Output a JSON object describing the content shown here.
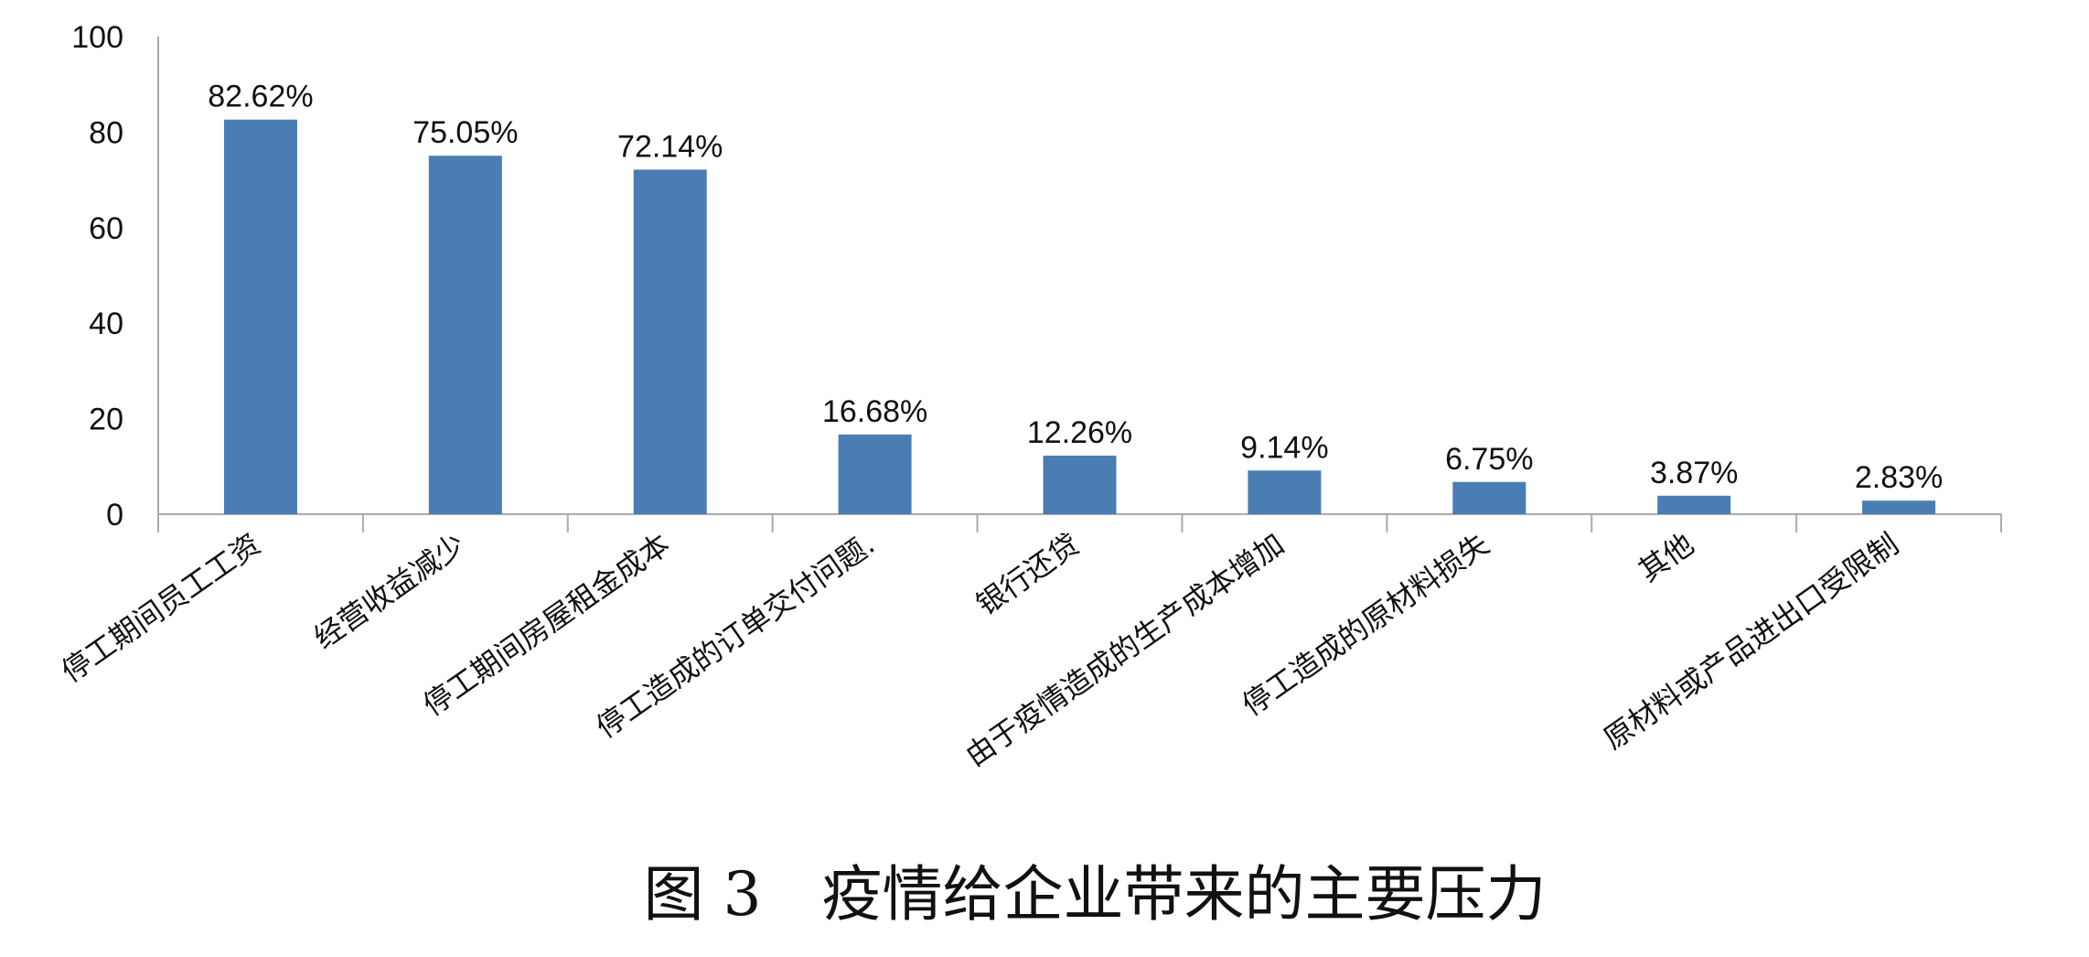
{
  "chart_data": {
    "type": "bar",
    "title": "图 3　疫情给企业带来的主要压力",
    "xlabel": "",
    "ylabel": "",
    "ylim": [
      0,
      100
    ],
    "yticks": [
      0,
      20,
      40,
      60,
      80,
      100
    ],
    "grid": false,
    "legend": "none",
    "bar_color": "#4a7db3",
    "axis_color": "#aaaaaa",
    "categories": [
      "停工期间员工工资",
      "经营收益减少",
      "停工期间房屋租金成本",
      "停工造成的订单交付问题.",
      "银行还贷",
      "由于疫情造成的生产成本增加",
      "停工造成的原材料损失",
      "其他",
      "原材料或产品进出口受限制"
    ],
    "values": [
      82.62,
      75.05,
      72.14,
      16.68,
      12.26,
      9.14,
      6.75,
      3.87,
      2.83
    ],
    "data_labels": [
      "82.62%",
      "75.05%",
      "72.14%",
      "16.68%",
      "12.26%",
      "9.14%",
      "6.75%",
      "3.87%",
      "2.83%"
    ]
  }
}
